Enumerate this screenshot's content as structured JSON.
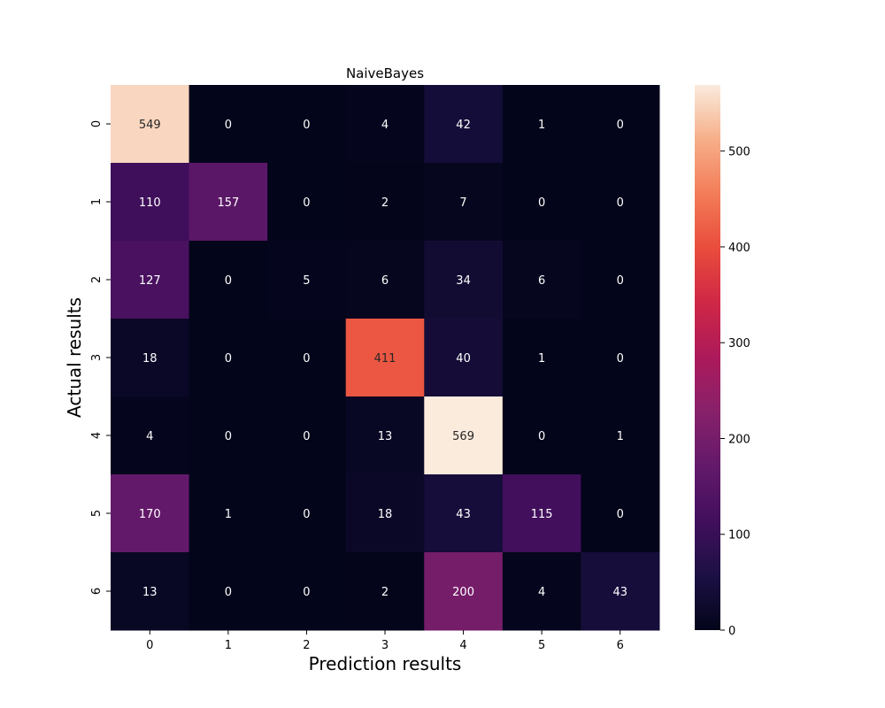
{
  "chart_data": {
    "type": "heatmap",
    "title": "NaiveBayes",
    "xlabel": "Prediction results",
    "ylabel": "Actual results",
    "x_categories": [
      "0",
      "1",
      "2",
      "3",
      "4",
      "5",
      "6"
    ],
    "y_categories": [
      "0",
      "1",
      "2",
      "3",
      "4",
      "5",
      "6"
    ],
    "values": [
      [
        549,
        0,
        0,
        4,
        42,
        1,
        0
      ],
      [
        110,
        157,
        0,
        2,
        7,
        0,
        0
      ],
      [
        127,
        0,
        5,
        6,
        34,
        6,
        0
      ],
      [
        18,
        0,
        0,
        411,
        40,
        1,
        0
      ],
      [
        4,
        0,
        0,
        13,
        569,
        0,
        1
      ],
      [
        170,
        1,
        0,
        18,
        43,
        115,
        0
      ],
      [
        13,
        0,
        0,
        2,
        200,
        4,
        43
      ]
    ],
    "colorbar": {
      "range": [
        0,
        569
      ],
      "ticks": [
        "0",
        "100",
        "200",
        "300",
        "400",
        "500"
      ],
      "colormap": "rocket"
    }
  }
}
